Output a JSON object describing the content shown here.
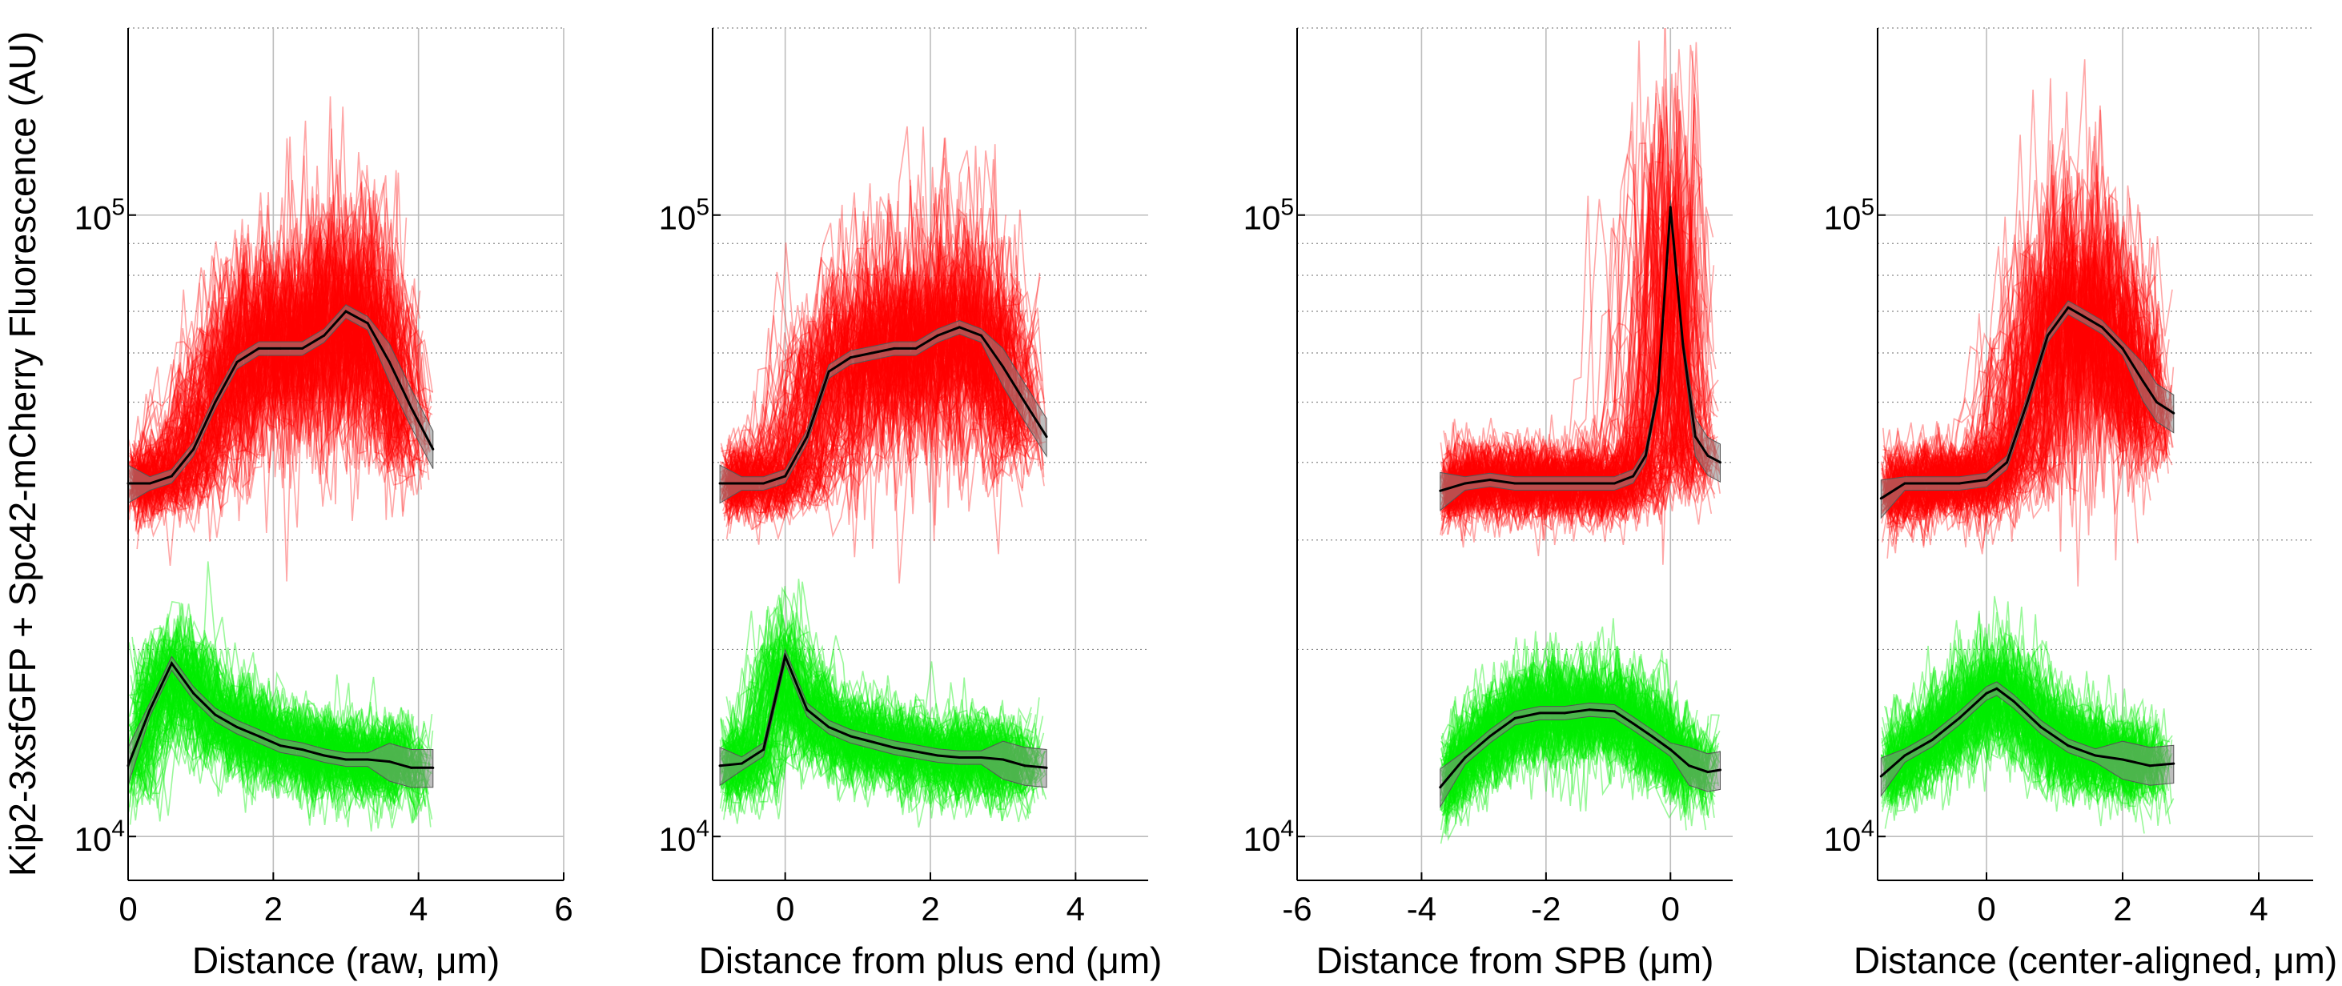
{
  "figure": {
    "ylabel": "Kip2-3xsfGFP + Spc42-mCherry Fluorescence (AU)"
  },
  "colors": {
    "red_traces": "#ff0000",
    "green_traces": "#00ee00",
    "mean_line": "#000000",
    "ci_band": "#888888",
    "grid": "#bdbdbd"
  },
  "chart_data": [
    {
      "type": "line",
      "xlabel": "Distance (raw, μm)",
      "xlim": [
        0,
        6
      ],
      "xticks": [
        0,
        2,
        4,
        6
      ],
      "ylim": [
        8500,
        200000
      ],
      "yscale": "log",
      "yticks": [
        {
          "value": 10000,
          "label": "10",
          "exp": "4"
        },
        {
          "value": 100000,
          "label": "10",
          "exp": "5"
        }
      ],
      "grid": true,
      "series": [
        {
          "color": "red",
          "x": [
            0,
            0.3,
            0.6,
            0.9,
            1.2,
            1.5,
            1.8,
            2.1,
            2.4,
            2.7,
            3.0,
            3.3,
            3.6,
            3.9,
            4.2
          ],
          "values": [
            37000,
            37000,
            38000,
            42000,
            50000,
            58000,
            61000,
            61000,
            61000,
            64000,
            70000,
            67000,
            58000,
            49000,
            42000
          ]
        },
        {
          "color": "green",
          "x": [
            0,
            0.3,
            0.6,
            0.9,
            1.2,
            1.5,
            1.8,
            2.1,
            2.4,
            2.7,
            3.0,
            3.3,
            3.6,
            3.9,
            4.2
          ],
          "values": [
            13000,
            16000,
            19000,
            17000,
            15700,
            15000,
            14500,
            14000,
            13800,
            13500,
            13300,
            13300,
            13200,
            12900,
            12900
          ]
        }
      ]
    },
    {
      "type": "line",
      "xlabel": "Distance from plus end (μm)",
      "xlim": [
        -1,
        5
      ],
      "xticks": [
        0,
        2,
        4
      ],
      "ylim": [
        8500,
        200000
      ],
      "yscale": "log",
      "yticks": [
        {
          "value": 10000,
          "label": "10",
          "exp": "4"
        },
        {
          "value": 100000,
          "label": "10",
          "exp": "5"
        }
      ],
      "grid": true,
      "series": [
        {
          "color": "red",
          "x": [
            -0.9,
            -0.6,
            -0.3,
            0,
            0.3,
            0.6,
            0.9,
            1.2,
            1.5,
            1.8,
            2.1,
            2.4,
            2.7,
            3.0,
            3.3,
            3.6
          ],
          "values": [
            37000,
            37000,
            37000,
            38000,
            44000,
            56000,
            59000,
            60000,
            61000,
            61000,
            64000,
            66000,
            64000,
            57000,
            50000,
            44000
          ]
        },
        {
          "color": "green",
          "x": [
            -0.9,
            -0.6,
            -0.3,
            0,
            0.3,
            0.6,
            0.9,
            1.2,
            1.5,
            1.8,
            2.1,
            2.4,
            2.7,
            3.0,
            3.3,
            3.6
          ],
          "values": [
            13000,
            13100,
            13800,
            19500,
            16000,
            15000,
            14500,
            14200,
            13900,
            13700,
            13500,
            13400,
            13400,
            13300,
            13000,
            12900
          ]
        }
      ]
    },
    {
      "type": "line",
      "xlabel": "Distance from SPB (μm)",
      "xlim": [
        -6,
        1
      ],
      "xticks": [
        -6,
        -4,
        -2,
        0
      ],
      "ylim": [
        8500,
        200000
      ],
      "yscale": "log",
      "yticks": [
        {
          "value": 10000,
          "label": "10",
          "exp": "4"
        },
        {
          "value": 100000,
          "label": "10",
          "exp": "5"
        }
      ],
      "grid": true,
      "series": [
        {
          "color": "red",
          "x": [
            -3.7,
            -3.3,
            -2.9,
            -2.5,
            -2.1,
            -1.7,
            -1.3,
            -0.9,
            -0.6,
            -0.4,
            -0.2,
            0,
            0.2,
            0.4,
            0.6,
            0.8
          ],
          "values": [
            36000,
            37000,
            37500,
            37000,
            37000,
            37000,
            37000,
            37000,
            38000,
            41000,
            52000,
            103000,
            62000,
            44000,
            41000,
            40000
          ]
        },
        {
          "color": "green",
          "x": [
            -3.7,
            -3.3,
            -2.9,
            -2.5,
            -2.1,
            -1.7,
            -1.3,
            -0.9,
            -0.6,
            -0.3,
            0,
            0.3,
            0.6,
            0.8
          ],
          "values": [
            12000,
            13400,
            14500,
            15500,
            15800,
            15800,
            16000,
            15900,
            15200,
            14500,
            13800,
            13000,
            12700,
            12800
          ]
        }
      ]
    },
    {
      "type": "line",
      "xlabel": "Distance (center-aligned, μm)",
      "xlim": [
        -1.6,
        4.8
      ],
      "xticks": [
        0,
        2,
        4
      ],
      "ylim": [
        8500,
        200000
      ],
      "yscale": "log",
      "yticks": [
        {
          "value": 10000,
          "label": "10",
          "exp": "4"
        },
        {
          "value": 100000,
          "label": "10",
          "exp": "5"
        }
      ],
      "grid": true,
      "series": [
        {
          "color": "red",
          "x": [
            -1.55,
            -1.2,
            -0.8,
            -0.4,
            0,
            0.3,
            0.6,
            0.9,
            1.2,
            1.4,
            1.7,
            2.0,
            2.3,
            2.5,
            2.75
          ],
          "values": [
            35000,
            37000,
            37000,
            37000,
            37500,
            40000,
            50000,
            64000,
            71000,
            69000,
            66000,
            61000,
            54000,
            50000,
            48000
          ]
        },
        {
          "color": "green",
          "x": [
            -1.55,
            -1.2,
            -0.8,
            -0.4,
            0,
            0.15,
            0.4,
            0.8,
            1.2,
            1.6,
            2.0,
            2.4,
            2.75
          ],
          "values": [
            12500,
            13500,
            14300,
            15500,
            17000,
            17300,
            16500,
            15000,
            14000,
            13500,
            13300,
            13000,
            13100
          ]
        }
      ]
    }
  ]
}
